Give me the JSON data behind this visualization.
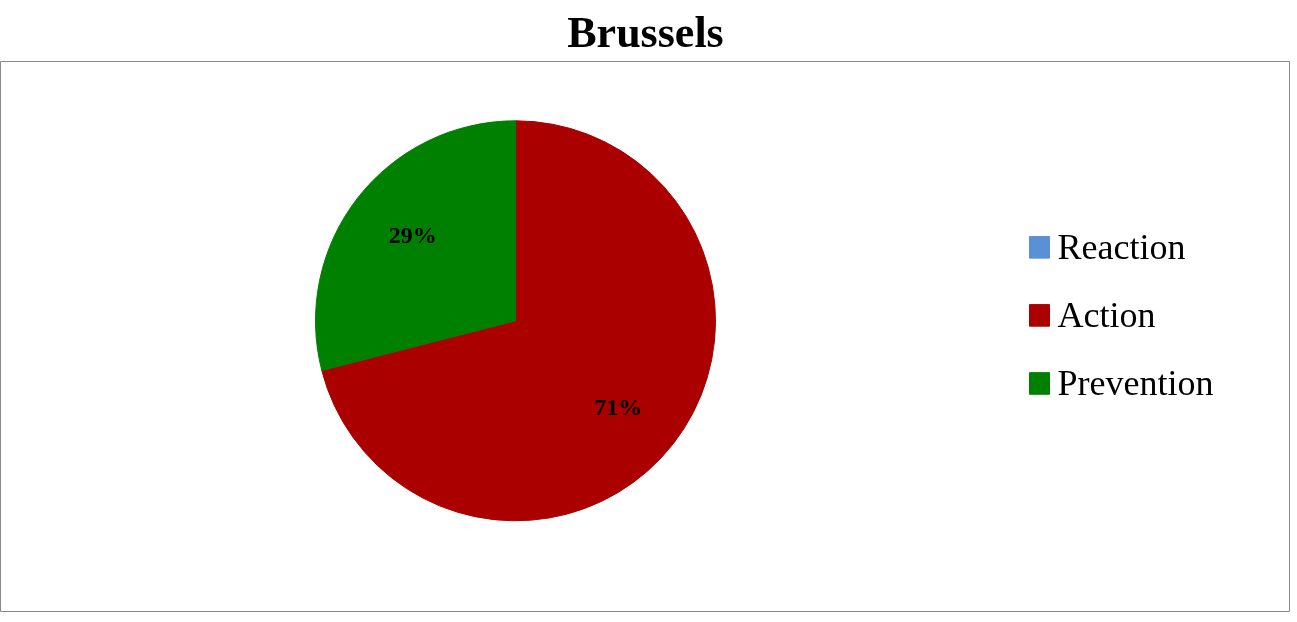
{
  "chart_data": {
    "type": "pie",
    "title": "Brussels",
    "categories": [
      "Reaction",
      "Action",
      "Prevention"
    ],
    "values": [
      0,
      71,
      29
    ],
    "colors": [
      "#5b8fd6",
      "#aa0000",
      "#008000"
    ],
    "value_labels": [
      null,
      "71%",
      "29%"
    ],
    "legend": "right"
  }
}
